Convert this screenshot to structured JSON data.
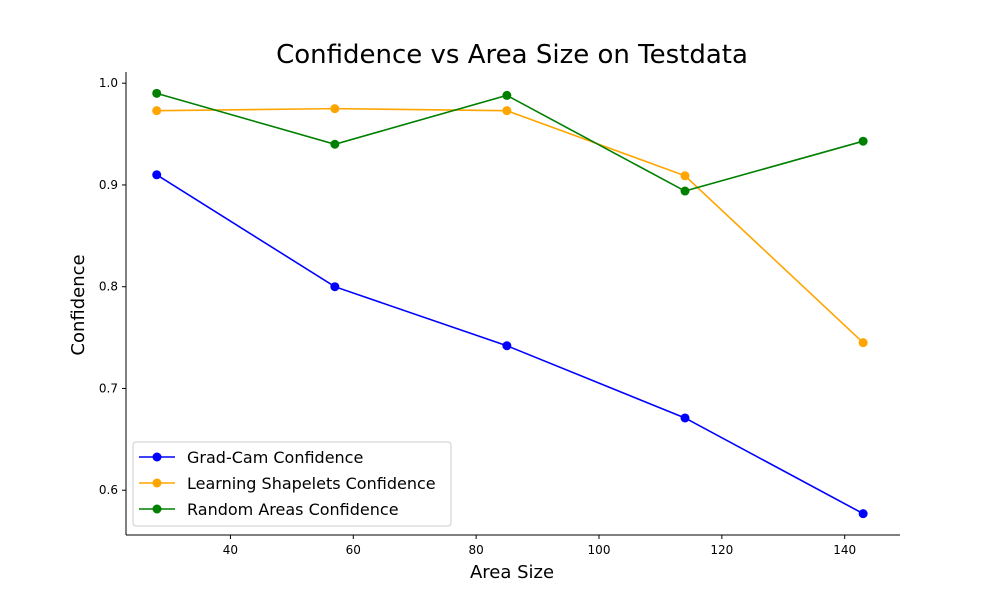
{
  "chart_data": {
    "type": "line",
    "title": "Confidence vs Area Size on Testdata",
    "xlabel": "Area Size",
    "ylabel": "Confidence",
    "x": [
      28,
      57,
      85,
      114,
      143
    ],
    "xlim": [
      23,
      149
    ],
    "ylim": [
      0.556,
      1.011
    ],
    "xticks": [
      40,
      60,
      80,
      100,
      120,
      140
    ],
    "yticks": [
      0.6,
      0.7,
      0.8,
      0.9,
      1.0
    ],
    "xtick_labels": [
      "40",
      "60",
      "80",
      "100",
      "120",
      "140"
    ],
    "ytick_labels": [
      "0.6",
      "0.7",
      "0.8",
      "0.9",
      "1.0"
    ],
    "grid": false,
    "legend_position": "bottom-left",
    "series": [
      {
        "name": "Grad-Cam Confidence",
        "color": "#0000ff",
        "values": [
          0.91,
          0.8,
          0.742,
          0.671,
          0.577
        ]
      },
      {
        "name": "Learning Shapelets Confidence",
        "color": "#ffa500",
        "values": [
          0.973,
          0.975,
          0.973,
          0.909,
          0.745
        ]
      },
      {
        "name": "Random Areas Confidence",
        "color": "#008000",
        "values": [
          0.99,
          0.94,
          0.988,
          0.894,
          0.943
        ]
      }
    ]
  }
}
